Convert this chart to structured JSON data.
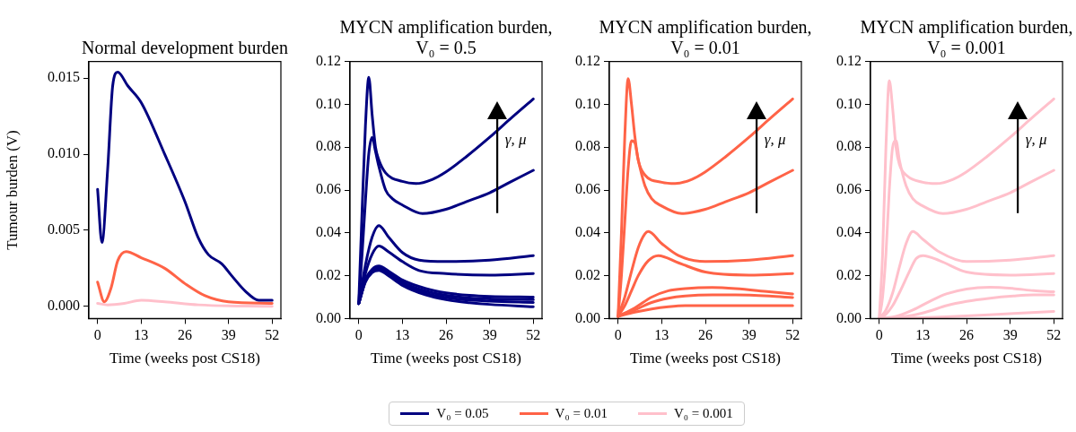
{
  "chart_data": [
    {
      "type": "line",
      "title": "Normal development burden",
      "xlabel": "Time (weeks post CS18)",
      "ylabel": "Tumour burden (V)",
      "xlim": [
        -2.6,
        54.6
      ],
      "xticks": [
        0,
        13,
        26,
        39,
        52
      ],
      "ylim": [
        -0.0008,
        0.0161
      ],
      "yticks": [
        {
          "value": 0,
          "label": "0.000"
        },
        {
          "value": 0.005,
          "label": "0.005"
        },
        {
          "value": 0.01,
          "label": "0.010"
        },
        {
          "value": 0.015,
          "label": "0.015"
        }
      ],
      "marker": "none",
      "legend": "bottom",
      "series": [
        {
          "name": "V₀ = 0.05",
          "color": "#000080",
          "x": [
            0,
            1.3,
            3,
            4.5,
            6,
            9,
            13,
            20,
            26,
            30,
            33,
            37,
            40,
            44,
            48,
            52
          ],
          "values": [
            0.0077,
            0.0042,
            0.009,
            0.0145,
            0.0154,
            0.0145,
            0.0134,
            0.01,
            0.0069,
            0.0045,
            0.0034,
            0.0028,
            0.002,
            0.001,
            0.0004,
            0.0004
          ]
        },
        {
          "name": "V₀ = 0.01",
          "color": "#ff6347",
          "x": [
            0,
            2,
            4,
            6,
            8.5,
            13,
            20,
            26,
            32,
            39,
            52
          ],
          "values": [
            0.0016,
            0.0003,
            0.0012,
            0.003,
            0.0036,
            0.0032,
            0.0025,
            0.0015,
            0.0007,
            0.0003,
            0.0002
          ]
        },
        {
          "name": "V₀ = 0.001",
          "color": "#ffc0cb",
          "x": [
            0,
            3,
            8,
            13,
            20,
            30,
            52
          ],
          "values": [
            0.0002,
            0.0001,
            0.0002,
            0.0004,
            0.0003,
            0.0001,
            0
          ]
        }
      ]
    },
    {
      "type": "line",
      "title": "MYCN amplification burden, V₀ = 0.5",
      "xlabel": "Time (weeks post CS18)",
      "xlim": [
        -2.6,
        54.6
      ],
      "xticks": [
        0,
        13,
        26,
        39,
        52
      ],
      "ylim": [
        0,
        0.12
      ],
      "yticks": [
        {
          "value": 0,
          "label": "0.00"
        },
        {
          "value": 0.02,
          "label": "0.02"
        },
        {
          "value": 0.04,
          "label": "0.04"
        },
        {
          "value": 0.06,
          "label": "0.06"
        },
        {
          "value": 0.08,
          "label": "0.08"
        },
        {
          "value": 0.1,
          "label": "0.10"
        },
        {
          "value": 0.12,
          "label": "0.12"
        }
      ],
      "marker": "none",
      "annotations": [
        "γ, μ"
      ],
      "series": [
        {
          "color": "#000080",
          "x": [
            0,
            1,
            2,
            3,
            4,
            5,
            6,
            8,
            13,
            17,
            22,
            26,
            32,
            39,
            45,
            52
          ],
          "values": [
            0.007,
            0.05,
            0.09,
            0.1126,
            0.095,
            0.08,
            0.074,
            0.068,
            0.064,
            0.063,
            0.065,
            0.0685,
            0.0755,
            0.0846,
            0.093,
            0.1025
          ]
        },
        {
          "color": "#000080",
          "x": [
            0,
            1,
            2,
            3,
            4,
            5,
            6,
            8,
            10,
            13,
            19,
            26,
            32,
            39,
            45,
            52
          ],
          "values": [
            0.007,
            0.03,
            0.055,
            0.077,
            0.0846,
            0.078,
            0.071,
            0.06,
            0.056,
            0.053,
            0.049,
            0.051,
            0.0545,
            0.0587,
            0.0636,
            0.0692
          ]
        },
        {
          "color": "#000080",
          "x": [
            0,
            2,
            4,
            6,
            9,
            13,
            18,
            26,
            39,
            52
          ],
          "values": [
            0.007,
            0.025,
            0.038,
            0.0434,
            0.0378,
            0.0308,
            0.0273,
            0.0266,
            0.0273,
            0.0294
          ]
        },
        {
          "color": "#000080",
          "x": [
            0,
            2,
            4,
            6,
            9,
            13,
            18,
            26,
            39,
            52
          ],
          "values": [
            0.007,
            0.021,
            0.03,
            0.0338,
            0.031,
            0.0266,
            0.0224,
            0.021,
            0.0203,
            0.021
          ]
        },
        {
          "color": "#000080",
          "x": [
            0,
            2,
            4,
            6,
            9,
            13,
            20,
            26,
            33,
            39,
            52
          ],
          "values": [
            0.007,
            0.018,
            0.023,
            0.0245,
            0.022,
            0.018,
            0.014,
            0.012,
            0.0108,
            0.0103,
            0.01
          ]
        },
        {
          "color": "#000080",
          "x": [
            0,
            2,
            4,
            6,
            9,
            13,
            20,
            26,
            33,
            39,
            52
          ],
          "values": [
            0.007,
            0.018,
            0.0228,
            0.0238,
            0.0212,
            0.017,
            0.0128,
            0.0108,
            0.0096,
            0.0092,
            0.0088
          ]
        },
        {
          "color": "#000080",
          "x": [
            0,
            2,
            4,
            6,
            9,
            13,
            20,
            26,
            33,
            39,
            52
          ],
          "values": [
            0.007,
            0.0175,
            0.0222,
            0.0232,
            0.0205,
            0.0162,
            0.0118,
            0.0098,
            0.0086,
            0.0081,
            0.0075
          ]
        },
        {
          "color": "#000080",
          "x": [
            0,
            2,
            4,
            6,
            9,
            13,
            20,
            26,
            33,
            39,
            52
          ],
          "values": [
            0.007,
            0.017,
            0.0215,
            0.0225,
            0.0198,
            0.0155,
            0.011,
            0.0088,
            0.0074,
            0.0066,
            0.0055
          ]
        }
      ]
    },
    {
      "type": "line",
      "title": "MYCN amplification burden, V₀ = 0.01",
      "xlabel": "Time (weeks post CS18)",
      "xlim": [
        -2.6,
        54.6
      ],
      "xticks": [
        0,
        13,
        26,
        39,
        52
      ],
      "ylim": [
        0,
        0.12
      ],
      "yticks": [
        {
          "value": 0,
          "label": "0.00"
        },
        {
          "value": 0.02,
          "label": "0.02"
        },
        {
          "value": 0.04,
          "label": "0.04"
        },
        {
          "value": 0.06,
          "label": "0.06"
        },
        {
          "value": 0.08,
          "label": "0.08"
        },
        {
          "value": 0.1,
          "label": "0.10"
        },
        {
          "value": 0.12,
          "label": "0.12"
        }
      ],
      "marker": "none",
      "annotations": [
        "γ, μ"
      ],
      "series": [
        {
          "color": "#ff6347",
          "x": [
            0,
            1,
            2,
            3,
            4,
            5,
            6,
            8,
            13,
            17,
            22,
            26,
            32,
            39,
            45,
            52
          ],
          "values": [
            0.001,
            0.04,
            0.085,
            0.112,
            0.1,
            0.085,
            0.074,
            0.067,
            0.0636,
            0.063,
            0.065,
            0.0685,
            0.0755,
            0.0846,
            0.093,
            0.1025
          ]
        },
        {
          "color": "#ff6347",
          "x": [
            0,
            1,
            2,
            3,
            4,
            5,
            6,
            8,
            10,
            13,
            19,
            26,
            32,
            39,
            45,
            52
          ],
          "values": [
            0.001,
            0.02,
            0.045,
            0.07,
            0.083,
            0.082,
            0.074,
            0.062,
            0.056,
            0.0525,
            0.049,
            0.051,
            0.0545,
            0.0587,
            0.0636,
            0.0692
          ]
        },
        {
          "color": "#ff6347",
          "x": [
            0,
            2,
            4,
            6,
            8,
            9,
            13,
            18,
            26,
            39,
            52
          ],
          "values": [
            0.001,
            0.01,
            0.022,
            0.033,
            0.0395,
            0.0406,
            0.035,
            0.0294,
            0.0266,
            0.0273,
            0.0294
          ]
        },
        {
          "color": "#ff6347",
          "x": [
            0,
            2,
            4,
            6,
            9,
            12,
            18,
            26,
            39,
            52
          ],
          "values": [
            0.001,
            0.006,
            0.013,
            0.02,
            0.027,
            0.0294,
            0.026,
            0.0217,
            0.0203,
            0.021
          ]
        },
        {
          "color": "#ff6347",
          "x": [
            0,
            5,
            10,
            15,
            20,
            28,
            35,
            45,
            52
          ],
          "values": [
            0.001,
            0.005,
            0.01,
            0.013,
            0.014,
            0.0145,
            0.014,
            0.0125,
            0.0115
          ]
        },
        {
          "color": "#ff6347",
          "x": [
            0,
            5,
            10,
            15,
            20,
            28,
            35,
            45,
            52
          ],
          "values": [
            0.001,
            0.004,
            0.0075,
            0.0095,
            0.0105,
            0.011,
            0.011,
            0.0105,
            0.0098
          ]
        },
        {
          "color": "#ff6347",
          "x": [
            0,
            5,
            10,
            15,
            20,
            28,
            35,
            45,
            52
          ],
          "values": [
            0.001,
            0.003,
            0.0045,
            0.0055,
            0.006,
            0.006,
            0.006,
            0.006,
            0.006
          ]
        }
      ]
    },
    {
      "type": "line",
      "title": "MYCN amplification burden, V₀ = 0.001",
      "xlabel": "Time (weeks post CS18)",
      "xlim": [
        -2.6,
        54.6
      ],
      "xticks": [
        0,
        13,
        26,
        39,
        52
      ],
      "ylim": [
        0,
        0.12
      ],
      "yticks": [
        {
          "value": 0,
          "label": "0.00"
        },
        {
          "value": 0.02,
          "label": "0.02"
        },
        {
          "value": 0.04,
          "label": "0.04"
        },
        {
          "value": 0.06,
          "label": "0.06"
        },
        {
          "value": 0.08,
          "label": "0.08"
        },
        {
          "value": 0.1,
          "label": "0.10"
        },
        {
          "value": 0.12,
          "label": "0.12"
        }
      ],
      "marker": "none",
      "annotations": [
        "γ, μ"
      ],
      "series": [
        {
          "color": "#ffc0cb",
          "x": [
            0,
            1,
            2,
            3,
            4,
            5,
            6,
            8,
            13,
            17,
            22,
            26,
            32,
            39,
            45,
            52
          ],
          "values": [
            0,
            0.03,
            0.08,
            0.111,
            0.098,
            0.08,
            0.072,
            0.067,
            0.0636,
            0.063,
            0.065,
            0.0685,
            0.0755,
            0.0846,
            0.093,
            0.1025
          ]
        },
        {
          "color": "#ffc0cb",
          "x": [
            0,
            1,
            2,
            3,
            4,
            5,
            6,
            8,
            10,
            13,
            19,
            26,
            32,
            39,
            45,
            52
          ],
          "values": [
            0,
            0.01,
            0.03,
            0.06,
            0.08,
            0.083,
            0.074,
            0.062,
            0.056,
            0.0525,
            0.049,
            0.051,
            0.0545,
            0.0587,
            0.0636,
            0.0692
          ]
        },
        {
          "color": "#ffc0cb",
          "x": [
            0,
            2,
            4,
            6,
            8,
            10,
            13,
            18,
            26,
            39,
            52
          ],
          "values": [
            0,
            0.004,
            0.012,
            0.024,
            0.035,
            0.0406,
            0.037,
            0.031,
            0.0266,
            0.0273,
            0.0294
          ]
        },
        {
          "color": "#ffc0cb",
          "x": [
            0,
            2,
            4,
            6,
            9,
            11,
            13,
            18,
            26,
            39,
            52
          ],
          "values": [
            0,
            0.002,
            0.006,
            0.012,
            0.022,
            0.028,
            0.0294,
            0.027,
            0.0217,
            0.0203,
            0.021
          ]
        },
        {
          "color": "#ffc0cb",
          "x": [
            0,
            5,
            10,
            15,
            20,
            26,
            33,
            40,
            46,
            52
          ],
          "values": [
            0,
            0.001,
            0.004,
            0.008,
            0.0115,
            0.0138,
            0.0146,
            0.014,
            0.013,
            0.0125
          ]
        },
        {
          "color": "#ffc0cb",
          "x": [
            0,
            5,
            10,
            15,
            20,
            26,
            33,
            40,
            46,
            52
          ],
          "values": [
            0,
            0.0005,
            0.0015,
            0.0035,
            0.006,
            0.008,
            0.0095,
            0.0105,
            0.011,
            0.011
          ]
        },
        {
          "color": "#ffc0cb",
          "x": [
            0,
            10,
            20,
            30,
            40,
            52
          ],
          "values": [
            0,
            0.0003,
            0.0008,
            0.0015,
            0.0024,
            0.0033
          ]
        }
      ]
    }
  ]
}
